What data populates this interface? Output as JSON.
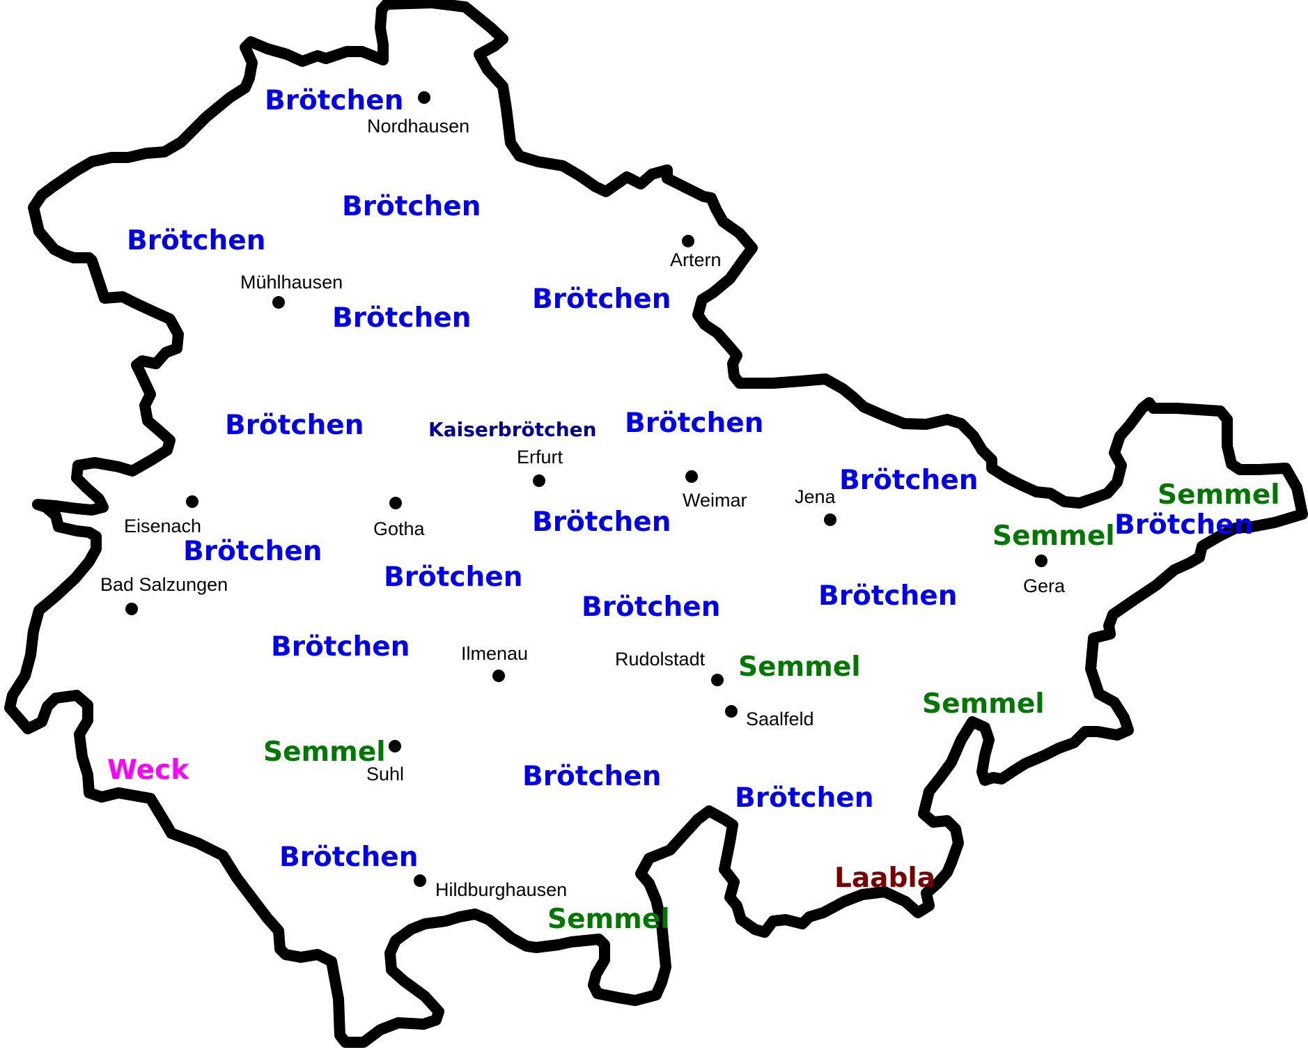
{
  "colors": {
    "background": "#ffffff",
    "border": "#000000",
    "city_dot": "#000000",
    "Brötchen": "#0000ee",
    "Kaiserbrötchen": "#000099",
    "Semmel": "#007700",
    "Weck": "#ff00ff",
    "Laabla": "#7a0000"
  },
  "cities": [
    {
      "name": "Nordhausen"
    },
    {
      "name": "Artern"
    },
    {
      "name": "Mühlhausen"
    },
    {
      "name": "Erfurt"
    },
    {
      "name": "Weimar"
    },
    {
      "name": "Jena"
    },
    {
      "name": "Gera"
    },
    {
      "name": "Eisenach"
    },
    {
      "name": "Gotha"
    },
    {
      "name": "Bad Salzungen"
    },
    {
      "name": "Ilmenau"
    },
    {
      "name": "Rudolstadt"
    },
    {
      "name": "Saalfeld"
    },
    {
      "name": "Suhl"
    },
    {
      "name": "Hildburghausen"
    }
  ],
  "dialect_words": [
    {
      "text": "Brötchen"
    },
    {
      "text": "Brötchen"
    },
    {
      "text": "Brötchen"
    },
    {
      "text": "Brötchen"
    },
    {
      "text": "Brötchen"
    },
    {
      "text": "Brötchen"
    },
    {
      "text": "Kaiserbrötchen"
    },
    {
      "text": "Brötchen"
    },
    {
      "text": "Brötchen"
    },
    {
      "text": "Brötchen"
    },
    {
      "text": "Brötchen"
    },
    {
      "text": "Semmel"
    },
    {
      "text": "Semmel"
    },
    {
      "text": "Brötchen"
    },
    {
      "text": "Brötchen"
    },
    {
      "text": "Brötchen"
    },
    {
      "text": "Brötchen"
    },
    {
      "text": "Brötchen"
    },
    {
      "text": "Semmel"
    },
    {
      "text": "Semmel"
    },
    {
      "text": "Semmel"
    },
    {
      "text": "Weck"
    },
    {
      "text": "Brötchen"
    },
    {
      "text": "Brötchen"
    },
    {
      "text": "Brötchen"
    },
    {
      "text": "Laabla"
    },
    {
      "text": "Semmel"
    }
  ]
}
